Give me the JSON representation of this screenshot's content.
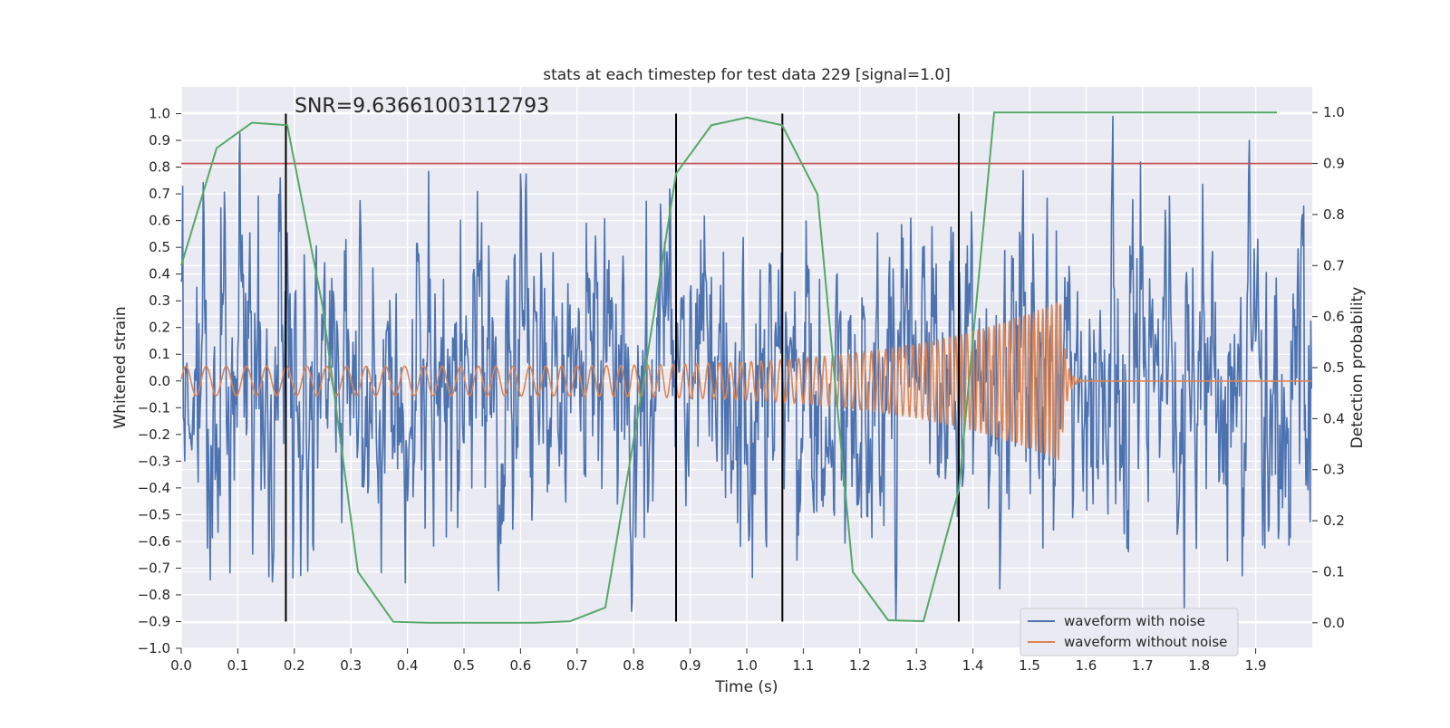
{
  "chart_data": {
    "type": "line",
    "title": "stats at each timestep for test data 229 [signal=1.0]",
    "xlabel": "Time (s)",
    "ylabel": "Whitened strain",
    "y2label": "Detection probability",
    "xlim": [
      0.0,
      2.0
    ],
    "ylim": [
      -1.0,
      1.1
    ],
    "y2lim": [
      -0.05,
      1.05
    ],
    "x_ticks": [
      "0.0",
      "0.1",
      "0.2",
      "0.3",
      "0.4",
      "0.5",
      "0.6",
      "0.7",
      "0.8",
      "0.9",
      "1.0",
      "1.1",
      "1.2",
      "1.3",
      "1.4",
      "1.5",
      "1.6",
      "1.7",
      "1.8",
      "1.9"
    ],
    "y_ticks": [
      "−1.0",
      "−0.9",
      "−0.8",
      "−0.7",
      "−0.6",
      "−0.5",
      "−0.4",
      "−0.3",
      "−0.2",
      "−0.1",
      "0.0",
      "0.1",
      "0.2",
      "0.3",
      "0.4",
      "0.5",
      "0.6",
      "0.7",
      "0.8",
      "0.9",
      "1.0"
    ],
    "y2_ticks": [
      "0.0",
      "0.1",
      "0.2",
      "0.3",
      "0.4",
      "0.5",
      "0.6",
      "0.7",
      "0.8",
      "0.9",
      "1.0"
    ],
    "grid": true,
    "legend_position": "bottom-right",
    "annotation": "SNR=9.63661003112793",
    "threshold": {
      "axis": "right",
      "value": 0.9,
      "color": "#c44e52"
    },
    "vertical_markers": {
      "x": [
        0.185,
        0.875,
        1.063,
        1.375
      ],
      "y_range": [
        -0.9,
        1.0
      ],
      "color": "#000000"
    },
    "series": [
      {
        "name": "waveform with noise",
        "color": "#4c72b0",
        "axis": "left",
        "description_of_values": "noisy whitened strain oscillating roughly between -0.9 and 1.0"
      },
      {
        "name": "waveform without noise",
        "color": "#dd8452",
        "axis": "left",
        "chirp": {
          "start_x": 0.0,
          "merger_x": 1.555,
          "start_amplitude": 0.055,
          "peak_amplitude": 0.3,
          "start_frequency_hz": 28,
          "end_frequency_hz": 130
        }
      },
      {
        "color": "#55a868",
        "axis": "right",
        "x": [
          0.0,
          0.0625,
          0.125,
          0.1875,
          0.25,
          0.3125,
          0.375,
          0.4375,
          0.5,
          0.5625,
          0.625,
          0.6875,
          0.75,
          0.8125,
          0.875,
          0.9375,
          1.0,
          1.0625,
          1.125,
          1.1875,
          1.25,
          1.3125,
          1.375,
          1.4375,
          1.5,
          1.5625,
          1.625,
          1.6875,
          1.75,
          1.8125,
          1.875,
          1.9375
        ],
        "y": [
          0.7,
          0.93,
          0.98,
          0.975,
          0.62,
          0.1,
          0.002,
          0.0,
          0.0,
          0.0,
          0.0,
          0.003,
          0.03,
          0.44,
          0.88,
          0.975,
          0.99,
          0.975,
          0.84,
          0.1,
          0.005,
          0.003,
          0.26,
          1.0,
          1.0,
          1.0,
          1.0,
          1.0,
          1.0,
          1.0,
          1.0,
          1.0
        ]
      }
    ]
  }
}
